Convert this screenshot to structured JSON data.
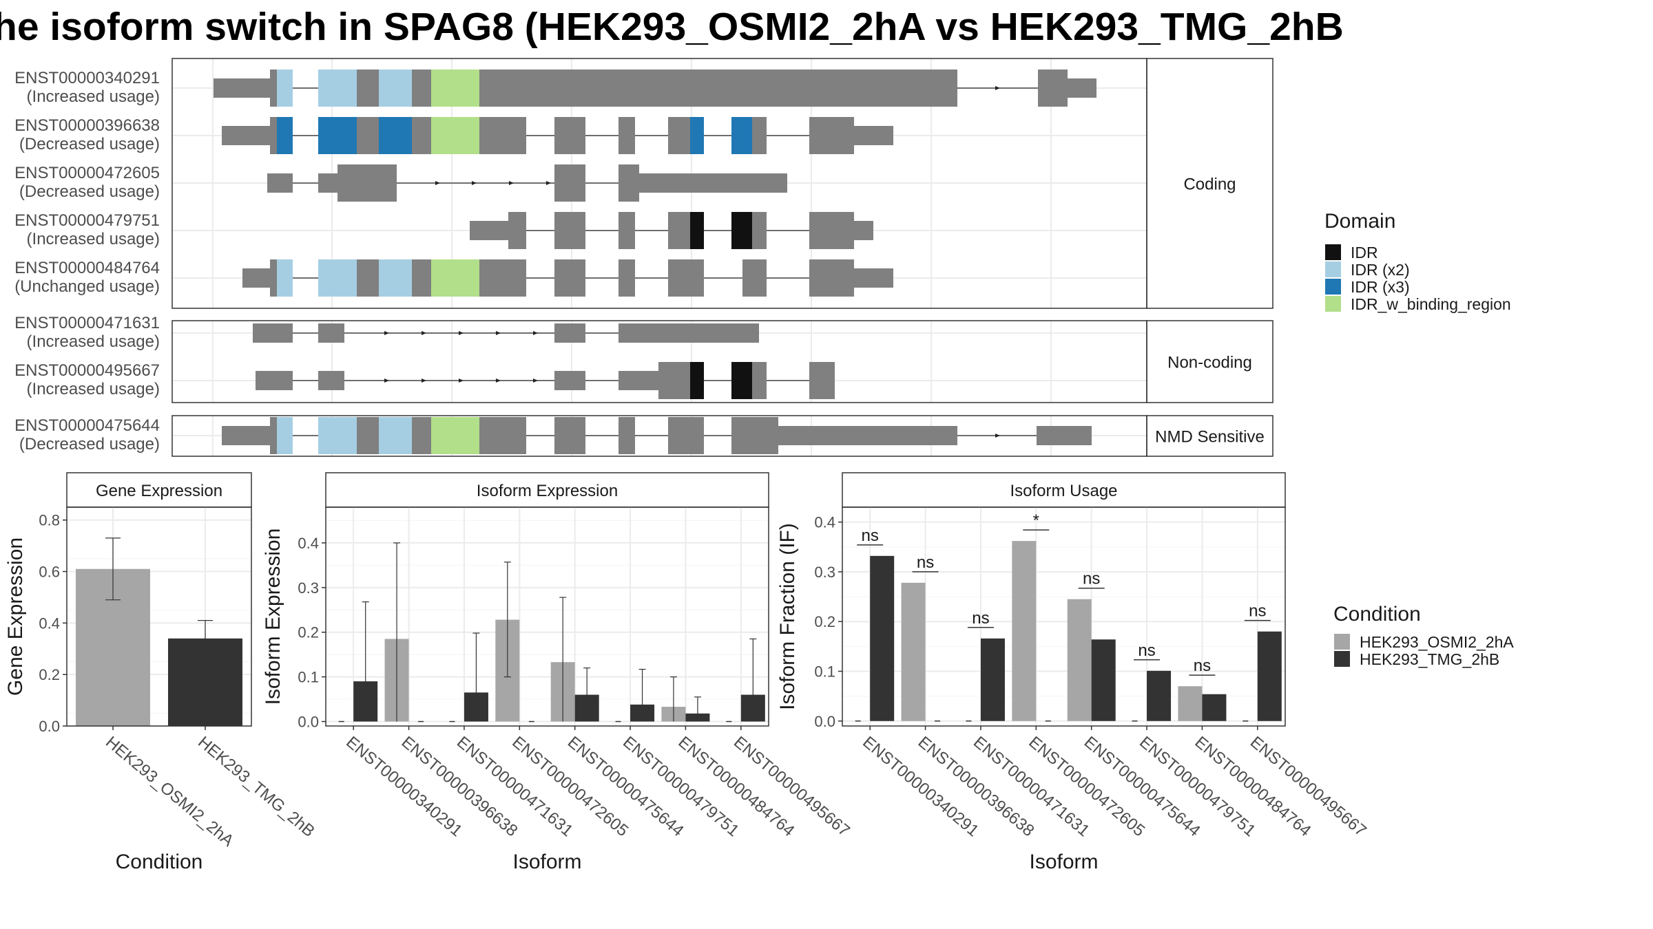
{
  "title": "he isoform switch in SPAG8 (HEK293_OSMI2_2hA vs HEK293_TMG_2hB",
  "chart_data": [
    {
      "type": "gene-structure",
      "panels": [
        {
          "label": "Coding",
          "rows": [
            {
              "id": "ENST00000340291",
              "usage": "(Increased usage)"
            },
            {
              "id": "ENST00000396638",
              "usage": "(Decreased usage)"
            },
            {
              "id": "ENST00000472605",
              "usage": "(Decreased usage)"
            },
            {
              "id": "ENST00000479751",
              "usage": "(Increased usage)"
            },
            {
              "id": "ENST00000484764",
              "usage": "(Unchanged usage)"
            }
          ]
        },
        {
          "label": "Non-coding",
          "rows": [
            {
              "id": "ENST00000471631",
              "usage": "(Increased usage)"
            },
            {
              "id": "ENST00000495667",
              "usage": "(Increased usage)"
            }
          ]
        },
        {
          "label": "NMD Sensitive",
          "rows": [
            {
              "id": "ENST00000475644",
              "usage": "(Decreased usage)"
            }
          ]
        }
      ],
      "domain_legend": {
        "title": "Domain",
        "entries": [
          {
            "name": "IDR",
            "color": "#111111"
          },
          {
            "name": "IDR (x2)",
            "color": "#a6cee3"
          },
          {
            "name": "IDR (x3)",
            "color": "#1f78b4"
          },
          {
            "name": "IDR_w_binding_region",
            "color": "#b2df8a"
          }
        ]
      }
    },
    {
      "type": "bar",
      "strip": "Gene Expression",
      "xlabel": "Condition",
      "ylabel": "Gene Expression",
      "categories": [
        "HEK293_OSMI2_2hA",
        "HEK293_TMG_2hB"
      ],
      "values": [
        0.61,
        0.34
      ],
      "errors": [
        [
          0.49,
          0.73
        ],
        [
          0.27,
          0.41
        ]
      ],
      "colors": [
        "#a6a6a6",
        "#333333"
      ],
      "ylim": [
        0,
        0.85
      ],
      "yticks": [
        "0.0",
        "0.2",
        "0.4",
        "0.6",
        "0.8"
      ]
    },
    {
      "type": "bar",
      "strip": "Isoform Expression",
      "xlabel": "Isoform",
      "ylabel": "Isoform Expression",
      "categories": [
        "ENST00000340291",
        "ENST00000396638",
        "ENST00000471631",
        "ENST00000472605",
        "ENST00000475644",
        "ENST00000479751",
        "ENST00000484764",
        "ENST00000495667"
      ],
      "series": [
        {
          "name": "HEK293_OSMI2_2hA",
          "values": [
            0.0,
            0.185,
            0.0,
            0.228,
            0.133,
            0.0,
            0.033,
            0.0
          ],
          "errors": [
            [
              0,
              0
            ],
            [
              0,
              0.4
            ],
            [
              0,
              0
            ],
            [
              0.1,
              0.357
            ],
            [
              0,
              0.278
            ],
            [
              0,
              0
            ],
            [
              0,
              0.1
            ],
            [
              0,
              0
            ]
          ]
        },
        {
          "name": "HEK293_TMG_2hB",
          "values": [
            0.09,
            0.0,
            0.065,
            0.0,
            0.06,
            0.038,
            0.018,
            0.06
          ],
          "errors": [
            [
              0,
              0.268
            ],
            [
              0,
              0
            ],
            [
              0,
              0.198
            ],
            [
              0,
              0
            ],
            [
              0,
              0.12
            ],
            [
              0,
              0.117
            ],
            [
              0,
              0.055
            ],
            [
              0,
              0.185
            ]
          ]
        }
      ],
      "ylim": [
        -0.01,
        0.48
      ],
      "yticks": [
        "0.0",
        "0.1",
        "0.2",
        "0.3",
        "0.4"
      ]
    },
    {
      "type": "bar",
      "strip": "Isoform Usage",
      "xlabel": "Isoform",
      "ylabel": "Isoform Fraction (IF)",
      "categories": [
        "ENST00000340291",
        "ENST00000396638",
        "ENST00000471631",
        "ENST00000472605",
        "ENST00000475644",
        "ENST00000479751",
        "ENST00000484764",
        "ENST00000495667"
      ],
      "series": [
        {
          "name": "HEK293_OSMI2_2hA",
          "values": [
            0.0,
            0.278,
            0.0,
            0.362,
            0.245,
            0.0,
            0.07,
            0.0
          ]
        },
        {
          "name": "HEK293_TMG_2hB",
          "values": [
            0.332,
            0.0,
            0.166,
            0.0,
            0.164,
            0.101,
            0.054,
            0.18
          ]
        }
      ],
      "significance": [
        "ns",
        "ns",
        "ns",
        "*",
        "ns",
        "ns",
        "ns",
        "ns"
      ],
      "ylim": [
        -0.01,
        0.43
      ],
      "yticks": [
        "0.0",
        "0.1",
        "0.2",
        "0.3",
        "0.4"
      ]
    }
  ],
  "condition_legend": {
    "title": "Condition",
    "entries": [
      {
        "name": "HEK293_OSMI2_2hA",
        "color": "#a6a6a6"
      },
      {
        "name": "HEK293_TMG_2hB",
        "color": "#333333"
      }
    ]
  }
}
